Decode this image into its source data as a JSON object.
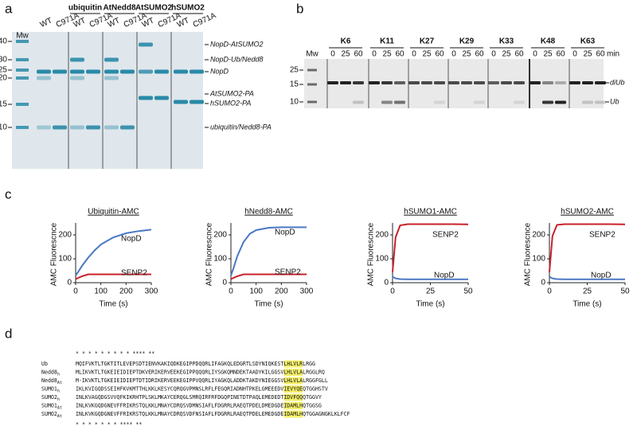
{
  "panel_labels": [
    "a",
    "b",
    "c",
    "d"
  ],
  "gel_a": {
    "mw_label": "Mw",
    "groups": [
      "ubiquitin",
      "AtNedd8",
      "AtSUMO2",
      "hSUMO2"
    ],
    "lanes": [
      "WT",
      "C971A",
      "WT",
      "C971A",
      "WT",
      "C971A",
      "WT",
      "C971A",
      "WT",
      "C971A"
    ],
    "markers": [
      "40",
      "30",
      "25",
      "20",
      "15",
      "10"
    ],
    "bands": [
      "NopD-AtSUMO2",
      "NopD-Ub/Nedd8",
      "NopD",
      "AtSUMO2-PA",
      "hSUMO2-PA",
      "ubiquitin/Nedd8-PA"
    ]
  },
  "gel_b": {
    "mw_label": "Mw",
    "groups": [
      "K6",
      "K11",
      "K27",
      "K29",
      "K33",
      "K48",
      "K63"
    ],
    "times": [
      "0",
      "25",
      "60"
    ],
    "time_unit": "min",
    "markers": [
      "25",
      "15",
      "10"
    ],
    "bands": [
      "diUb",
      "Ub"
    ]
  },
  "chart_data": [
    {
      "type": "line",
      "title": "Ubiquitin-AMC",
      "xlabel": "Time (s)",
      "ylabel": "AMC Fluorescnce",
      "x": [
        0,
        10,
        25,
        50,
        75,
        100,
        150,
        200,
        250,
        300
      ],
      "series": [
        {
          "name": "NopD",
          "color": "#4a78c4",
          "values": [
            30,
            45,
            70,
            105,
            135,
            160,
            190,
            207,
            216,
            222
          ]
        },
        {
          "name": "SENP2",
          "color": "#c8202a",
          "values": [
            15,
            20,
            27,
            35,
            35,
            35,
            35,
            35,
            35,
            35
          ]
        }
      ],
      "xlim": [
        0,
        300
      ],
      "xticks": [
        0,
        100,
        200,
        300
      ],
      "ylim": [
        0,
        250
      ],
      "yticks": [
        0,
        100,
        200
      ]
    },
    {
      "type": "line",
      "title": "hNedd8-AMC",
      "xlabel": "Time (s)",
      "ylabel": "AMC Fluorescnce",
      "x": [
        0,
        10,
        25,
        50,
        75,
        100,
        150,
        200,
        250,
        300
      ],
      "series": [
        {
          "name": "NopD",
          "color": "#4a78c4",
          "values": [
            30,
            60,
            110,
            170,
            205,
            220,
            230,
            232,
            232,
            232
          ]
        },
        {
          "name": "SENP2",
          "color": "#c8202a",
          "values": [
            15,
            20,
            27,
            35,
            35,
            35,
            35,
            35,
            35,
            35
          ]
        }
      ],
      "xlim": [
        0,
        300
      ],
      "xticks": [
        0,
        100,
        200,
        300
      ],
      "ylim": [
        0,
        250
      ],
      "yticks": [
        0,
        100,
        200
      ]
    },
    {
      "type": "line",
      "title": "hSUMO1-AMC",
      "xlabel": "Time (s)",
      "ylabel": "AMC Fluorescnce",
      "x": [
        0,
        2,
        5,
        10,
        20,
        30,
        40,
        50
      ],
      "series": [
        {
          "name": "SENP2",
          "color": "#c8202a",
          "values": [
            45,
            190,
            240,
            245,
            245,
            245,
            245,
            244
          ]
        },
        {
          "name": "NopD",
          "color": "#4a78c4",
          "values": [
            25,
            18,
            15,
            14,
            14,
            14,
            14,
            14
          ]
        }
      ],
      "xlim": [
        0,
        50
      ],
      "xticks": [
        0,
        25,
        50
      ],
      "ylim": [
        0,
        250
      ],
      "yticks": [
        0,
        100,
        200
      ]
    },
    {
      "type": "line",
      "title": "hSUMO2-AMC",
      "xlabel": "Time (s)",
      "ylabel": "AMC Fluorescnce",
      "x": [
        0,
        2,
        5,
        10,
        20,
        30,
        40,
        50
      ],
      "series": [
        {
          "name": "SENP2",
          "color": "#c8202a",
          "values": [
            45,
            195,
            242,
            245,
            245,
            245,
            245,
            244
          ]
        },
        {
          "name": "NopD",
          "color": "#4a78c4",
          "values": [
            25,
            18,
            15,
            14,
            14,
            14,
            14,
            14
          ]
        }
      ],
      "xlim": [
        0,
        50
      ],
      "xticks": [
        0,
        25,
        50
      ],
      "ylim": [
        0,
        250
      ],
      "yticks": [
        0,
        100,
        200
      ]
    }
  ],
  "alignment": {
    "top_marks": "  *  *  *                       *   *  *   *   *                       *  ****  **",
    "bottom_marks": "     * *  *                                 *       *   *                  *  ****  **",
    "rows": [
      {
        "name": "Ub",
        "sequence": "MQIFVKTLTGKTITLEVEPSDTIENVKAKIQDKEGIPPDQQRLIFAGKQLEDGRTLSDYNIQKESTLHLVLRLRGG"
      },
      {
        "name": "Nedd8",
        "sub": "h",
        "sequence": "MLIKVKTLTGKEIEIDIEPTDKVERIKERVEEKEGIPPQQQRLIYSGKQMNDEKTAADYKILGGSVLHLVLALRGGLRQ"
      },
      {
        "name": "Nedd8",
        "sub": "At",
        "sequence": "M-IKVKTLTGKEIEIDIEPTDTIDRIKERVEEKEGIPPVQQRLIYAGKQLADDKTAKDYNIEGGSVLHLVLALRGGFGLL"
      },
      {
        "name": "SUMO1",
        "sub": "h",
        "sequence": "IKLKVIGQDSSEIHFKVKMTTHLKKLKESYCQRQGVPMNSLRFLFEGQRIADNHTPKELGMEEEDVIEVYQEQTGGHSTV"
      },
      {
        "name": "SUMO2",
        "sub": "h",
        "sequence": "INLKVAGQDGSVVQFKIKRHTPLSKLMKAYCERQGLSMRQIRFRFDGQPINETDTPAQLEMEDEDTIDVFQQQTGGVY"
      },
      {
        "name": "SUMO1",
        "sub": "At",
        "sequence": "INLKVKGQDGNEVFFRIKRSTQLKKLMNAYCDRQSVDMNSIAFLFDGRRLRAEQTPDELDMEDGDEIDAMLHQTGGSG"
      },
      {
        "name": "SUMO2",
        "sub": "At",
        "sequence": "INLKVKGQDGNEVFFRIKRSTQLKKLMNAYCDRQSVDFNSIAFLFDGRRLRAEQTPDELEMEDGDEIDAMLHQTGGAGNGKLKLFCF"
      }
    ]
  }
}
